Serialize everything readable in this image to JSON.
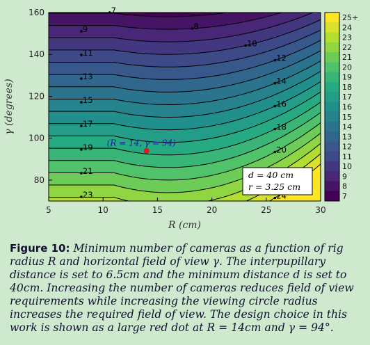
{
  "chart_data": {
    "type": "contour",
    "xlabel": "R (cm)",
    "ylabel": "γ (degrees)",
    "xlim": [
      5,
      30
    ],
    "ylim": [
      70,
      160
    ],
    "x_ticks": [
      "5",
      "10",
      "15",
      "20",
      "25",
      "30"
    ],
    "y_ticks": [
      "80",
      "100",
      "120",
      "140",
      "160"
    ],
    "colorbar_ticks": [
      "25+",
      "24",
      "23",
      "22",
      "21",
      "20",
      "19",
      "18",
      "17",
      "16",
      "15",
      "14",
      "13",
      "12",
      "11",
      "10",
      "9",
      "8",
      "7"
    ],
    "contour_levels": [
      7,
      8,
      9,
      10,
      11,
      12,
      13,
      14,
      15,
      16,
      17,
      18,
      19,
      20,
      21,
      22,
      23,
      24
    ],
    "contour_labels_left": [
      "9",
      "11",
      "13",
      "15",
      "17",
      "19",
      "21",
      "23"
    ],
    "contour_labels_right": [
      "7",
      "8",
      "10",
      "12",
      "14",
      "16",
      "18",
      "20",
      "22",
      "24"
    ],
    "design_point": {
      "R": 14,
      "gamma": 94,
      "label": "(R = 14, γ = 94)",
      "color": "#e8161b"
    },
    "parameters": [
      "d = 40 cm",
      "r = 3.25 cm"
    ],
    "grid": false,
    "colormap": "viridis",
    "colorbar": "right"
  },
  "caption": {
    "label": "Figure 10:",
    "text": "Minimum number of cameras as a function of rig radius R and horizontal field of view γ. The interpupillary distance is set to 6.5cm and the minimum distance d is set to 40cm. Increasing the number of cameras reduces field of view requirements while increasing the viewing circle radius increases the required field of view. The design choice in this work is shown as a large red dot at R = 14cm and γ = 94°."
  },
  "colors": {
    "background": "#cfe9cf",
    "accent": "#e8161b"
  }
}
